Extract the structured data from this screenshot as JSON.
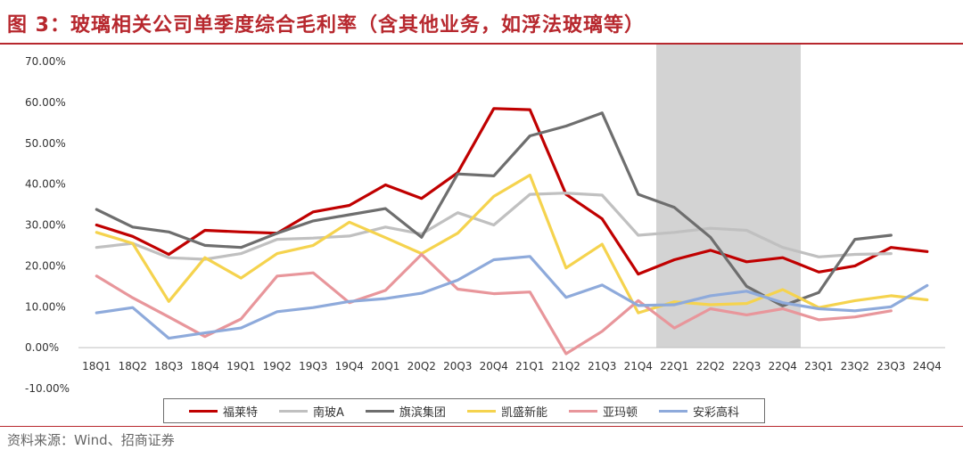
{
  "figure": {
    "title": "图 3：玻璃相关公司单季度综合毛利率（含其他业务，如浮法玻璃等）",
    "source": "资料来源：Wind、招商证券"
  },
  "colors": {
    "accent": "#b7282e",
    "shade": "#d3d3d3"
  },
  "chart_data": {
    "type": "line",
    "title": "图 3：玻璃相关公司单季度综合毛利率（含其他业务，如浮法玻璃等）",
    "xlabel": "",
    "ylabel": "",
    "ylim": [
      -10,
      70
    ],
    "y_ticks": [
      "-10.00%",
      "0.00%",
      "10.00%",
      "20.00%",
      "30.00%",
      "40.00%",
      "50.00%",
      "60.00%",
      "70.00%"
    ],
    "categories": [
      "18Q1",
      "18Q2",
      "18Q3",
      "18Q4",
      "19Q1",
      "19Q2",
      "19Q3",
      "19Q4",
      "20Q1",
      "20Q2",
      "20Q3",
      "20Q4",
      "21Q1",
      "21Q2",
      "21Q3",
      "21Q4",
      "22Q1",
      "22Q2",
      "22Q3",
      "22Q4",
      "23Q1",
      "23Q2",
      "23Q3",
      "24Q4"
    ],
    "shaded_range": [
      "22Q1",
      "22Q4"
    ],
    "legend_position": "bottom",
    "series": [
      {
        "name": "福莱特",
        "color": "#c00000",
        "values": [
          30,
          27.2,
          22.8,
          28.7,
          28.3,
          28,
          33.2,
          34.8,
          39.8,
          36.5,
          42.8,
          58.5,
          58.2,
          37.5,
          31.5,
          18,
          21.5,
          23.8,
          21,
          22,
          18.5,
          20,
          24.5,
          23.5
        ]
      },
      {
        "name": "南玻A",
        "color": "#c0c0c0",
        "values": [
          24.5,
          25.5,
          22,
          21.6,
          23,
          26.5,
          26.8,
          27.3,
          29.5,
          27.8,
          33,
          30,
          37.5,
          37.8,
          37.3,
          27.5,
          28.2,
          29.2,
          28.7,
          24.5,
          22.2,
          22.8,
          23,
          null
        ]
      },
      {
        "name": "旗滨集团",
        "color": "#6e6e6e",
        "values": [
          33.8,
          29.5,
          28.3,
          25,
          24.5,
          28,
          31,
          32.5,
          34,
          27,
          42.5,
          42,
          51.8,
          54.2,
          57.4,
          37.5,
          34.3,
          27,
          15,
          10.2,
          13.5,
          26.5,
          27.5,
          null
        ]
      },
      {
        "name": "凯盛新能",
        "color": "#f5d34e",
        "values": [
          28.2,
          25.5,
          11.3,
          22,
          17,
          23,
          25,
          30.7,
          26.9,
          23,
          28,
          37,
          42.2,
          19.5,
          25.3,
          8.5,
          11.2,
          10.5,
          10.8,
          14.2,
          9.8,
          11.5,
          12.7,
          11.7
        ]
      },
      {
        "name": "亚玛顿",
        "color": "#e8969b",
        "values": [
          17.5,
          12.2,
          7.5,
          2.7,
          7,
          17.5,
          18.3,
          11,
          14,
          22.8,
          14.3,
          13.2,
          13.6,
          -1.5,
          4,
          11.5,
          4.8,
          9.5,
          8,
          9.5,
          6.8,
          7.5,
          9,
          null
        ]
      },
      {
        "name": "安彩高科",
        "color": "#8eaadb",
        "values": [
          8.5,
          9.8,
          2.3,
          3.6,
          4.8,
          8.8,
          9.8,
          11.3,
          12,
          13.3,
          16.5,
          21.5,
          22.3,
          12.3,
          15.3,
          10.3,
          10.5,
          12.7,
          13.8,
          11,
          9.5,
          9,
          10,
          15.2
        ]
      }
    ]
  }
}
